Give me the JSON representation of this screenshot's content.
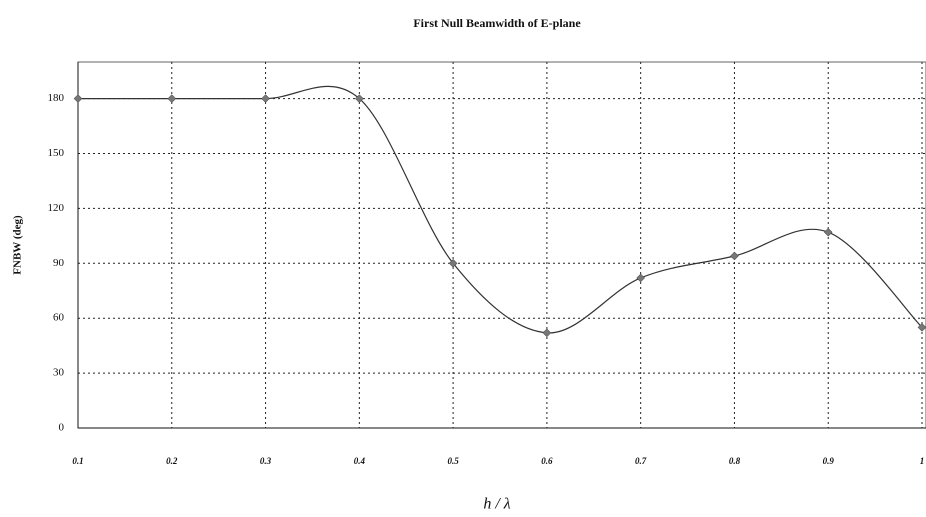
{
  "chart_data": {
    "type": "line",
    "title": "First Null Beamwidth of E-plane",
    "x_label": "h / λ",
    "y_label": "FNBW (deg)",
    "x": [
      0.1,
      0.2,
      0.3,
      0.4,
      0.5,
      0.6,
      0.7,
      0.8,
      0.9,
      1
    ],
    "values": [
      180,
      180,
      180,
      180,
      90,
      52,
      82,
      94,
      107,
      55
    ],
    "color": "#333333",
    "smooth": true,
    "xlim": [
      0.1,
      1
    ],
    "xticks": [
      0.1,
      0.2,
      0.3,
      0.4,
      0.5,
      0.6,
      0.7,
      0.8,
      0.9,
      1
    ],
    "ylim": [
      0,
      200
    ],
    "yticks": [
      0,
      30,
      60,
      90,
      120,
      150,
      180
    ],
    "grid": true
  }
}
